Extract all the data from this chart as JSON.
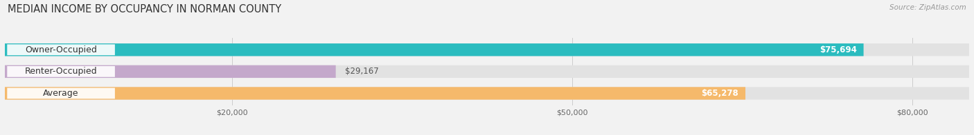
{
  "title": "MEDIAN INCOME BY OCCUPANCY IN NORMAN COUNTY",
  "source": "Source: ZipAtlas.com",
  "categories": [
    "Owner-Occupied",
    "Renter-Occupied",
    "Average"
  ],
  "values": [
    75694,
    29167,
    65278
  ],
  "bar_colors": [
    "#2bbcbf",
    "#c4a8cb",
    "#f5b96b"
  ],
  "value_labels": [
    "$75,694",
    "$29,167",
    "$65,278"
  ],
  "xlim": [
    0,
    85000
  ],
  "xticks": [
    20000,
    50000,
    80000
  ],
  "xtick_labels": [
    "$20,000",
    "$50,000",
    "$80,000"
  ],
  "background_color": "#f2f2f2",
  "bar_background_color": "#e2e2e2",
  "title_fontsize": 10.5,
  "source_fontsize": 7.5,
  "label_fontsize": 9,
  "value_fontsize": 8.5,
  "bar_height": 0.58
}
